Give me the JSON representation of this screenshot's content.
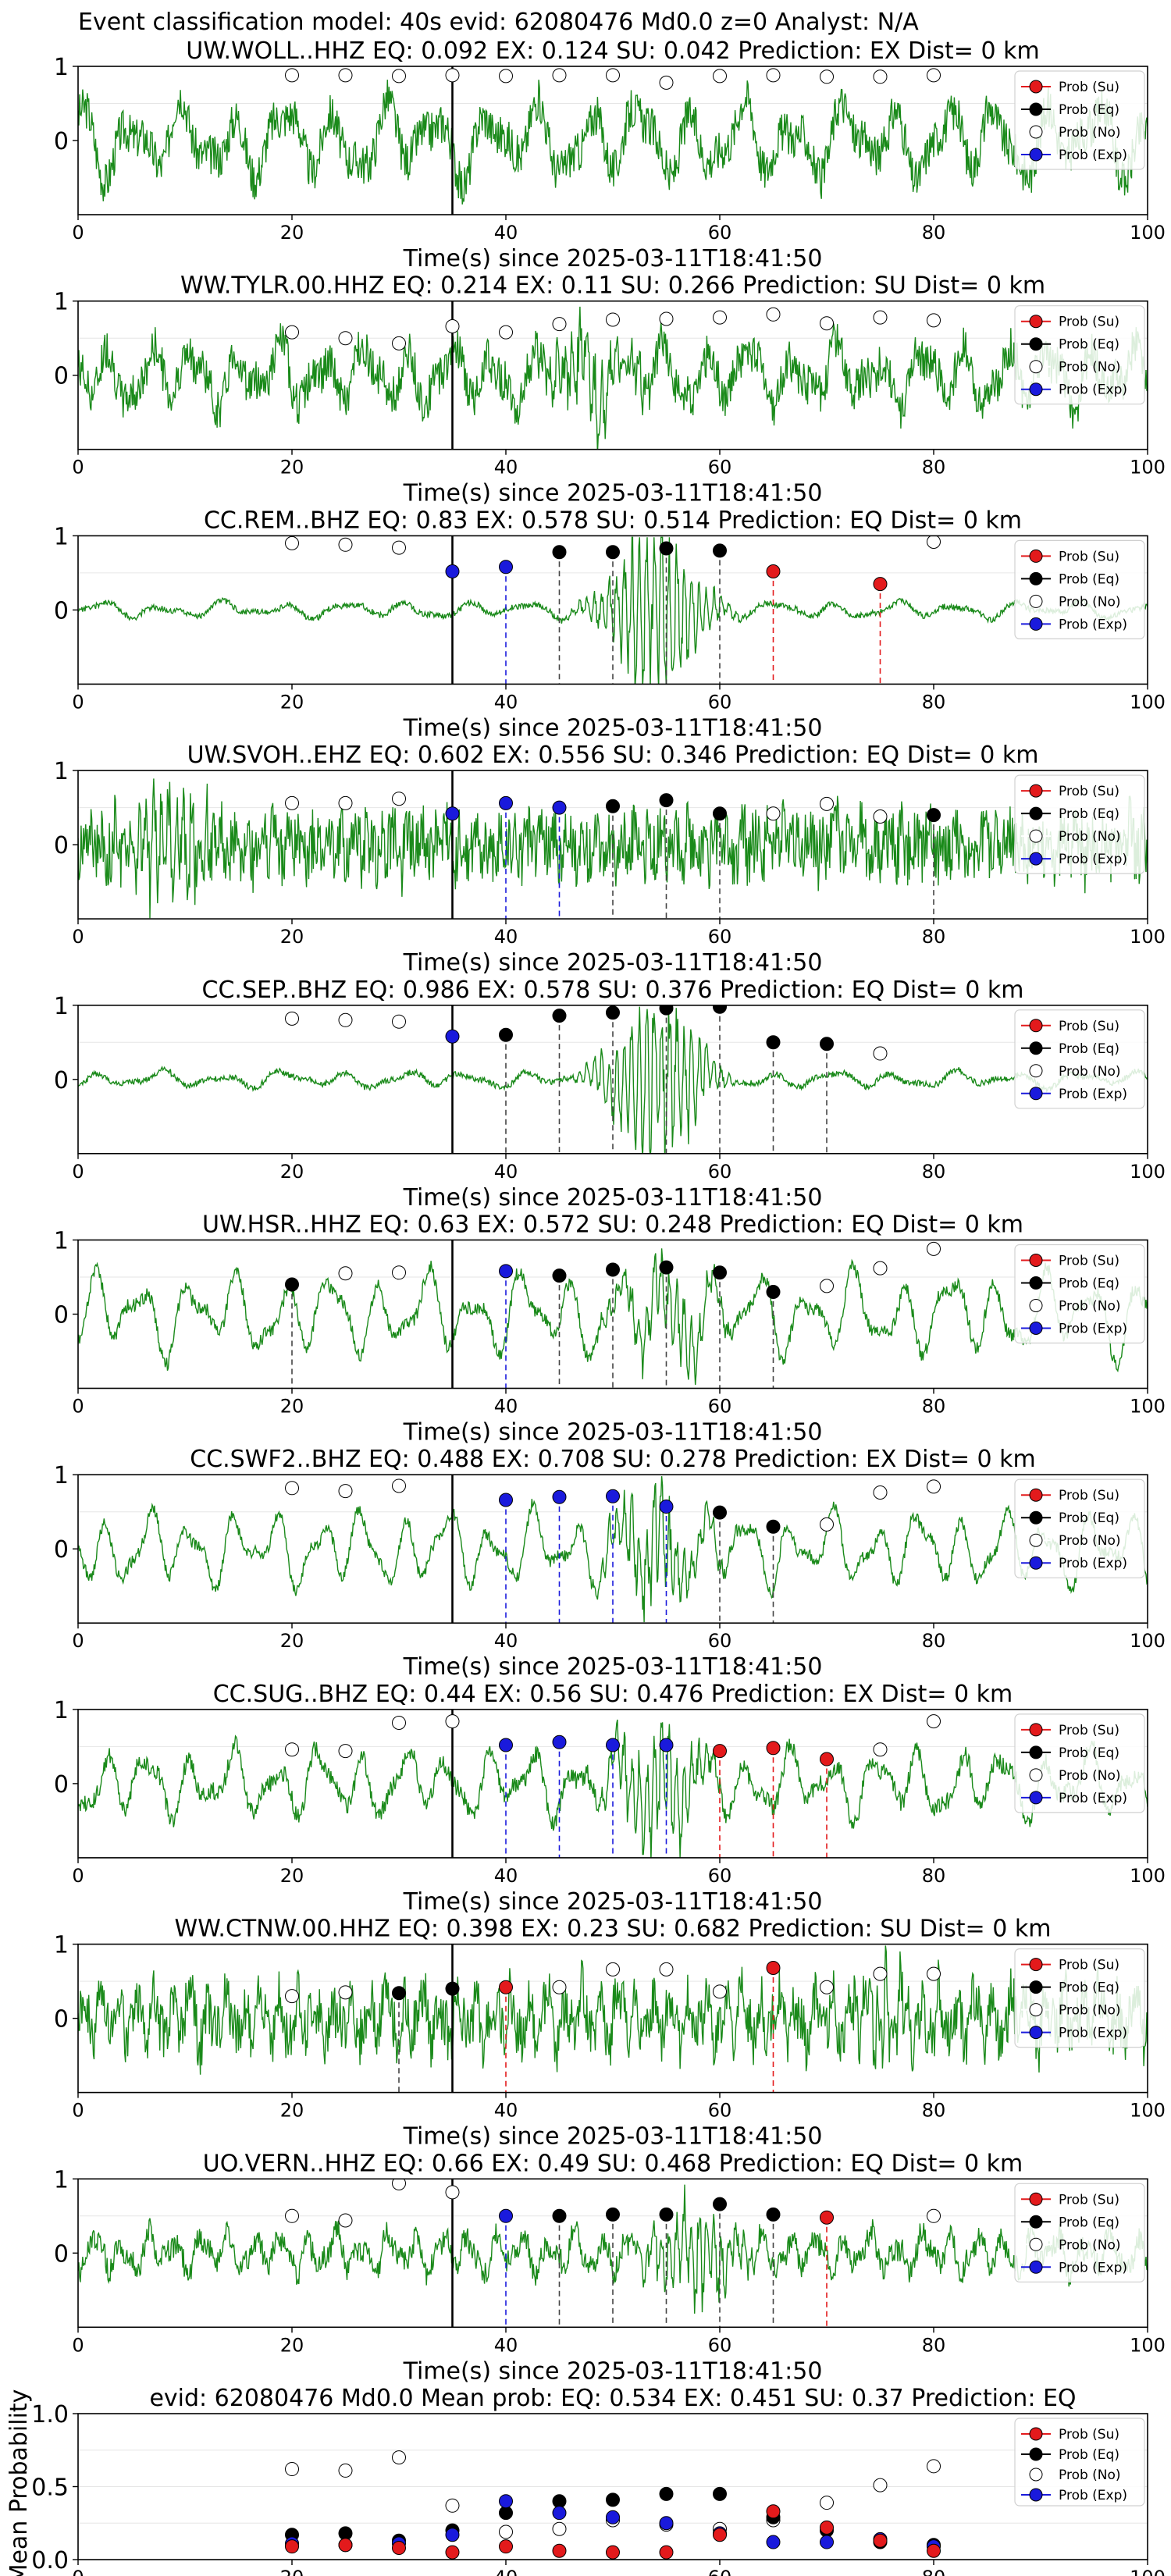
{
  "figure_title": "Event classification model: 40s evid: 62080476 Md0.0 z=0 Analyst: N/A",
  "colors": {
    "waveform": "#1a8a1a",
    "su": "#e31a1c",
    "eq": "#000000",
    "no": "#ffffff",
    "exp": "#1a1adc",
    "origin_line": "#000000",
    "grid": "#e6e6e6"
  },
  "legend": [
    "Prob (Su)",
    "Prob (Eq)",
    "Prob (No)",
    "Prob (Exp)"
  ],
  "xlabel": "Time(s) since 2025-03-11T18:41:50",
  "chart_data": [
    {
      "type": "line+scatter",
      "title": "UW.WOLL..HHZ   EQ: 0.092  EX: 0.124  SU: 0.042   Prediction: EX    Dist= 0 km",
      "xlim": [
        0,
        100
      ],
      "ylim": [
        -1,
        1
      ],
      "yticks": [
        0,
        1
      ],
      "xticks": [
        0,
        20,
        40,
        60,
        80,
        100
      ],
      "waveform": {
        "amp": 0.55,
        "noise": 0.35,
        "freq": 0.42,
        "seed": 3,
        "burst_center": 0,
        "burst_amp": 0
      },
      "origin_time": 35,
      "points": [
        {
          "x": 20,
          "cls": "no",
          "y": 0.88
        },
        {
          "x": 25,
          "cls": "no",
          "y": 0.88
        },
        {
          "x": 30,
          "cls": "no",
          "y": 0.87
        },
        {
          "x": 35,
          "cls": "no",
          "y": 0.88
        },
        {
          "x": 40,
          "cls": "no",
          "y": 0.87
        },
        {
          "x": 45,
          "cls": "no",
          "y": 0.88
        },
        {
          "x": 50,
          "cls": "no",
          "y": 0.88
        },
        {
          "x": 55,
          "cls": "no",
          "y": 0.78
        },
        {
          "x": 60,
          "cls": "no",
          "y": 0.87
        },
        {
          "x": 65,
          "cls": "no",
          "y": 0.88
        },
        {
          "x": 70,
          "cls": "no",
          "y": 0.86
        },
        {
          "x": 75,
          "cls": "no",
          "y": 0.86
        },
        {
          "x": 80,
          "cls": "no",
          "y": 0.88
        }
      ]
    },
    {
      "type": "line+scatter",
      "title": "WW.TYLR.00.HHZ   EQ: 0.214  EX: 0.11  SU: 0.266   Prediction: SU    Dist= 0 km",
      "xlim": [
        0,
        100
      ],
      "ylim": [
        -1,
        1
      ],
      "yticks": [
        0,
        1
      ],
      "xticks": [
        0,
        20,
        40,
        60,
        80,
        100
      ],
      "waveform": {
        "amp": 0.45,
        "noise": 0.35,
        "freq": 0.5,
        "seed": 7,
        "burst_center": 48,
        "burst_amp": 0.4
      },
      "origin_time": 35,
      "points": [
        {
          "x": 20,
          "cls": "no",
          "y": 0.58
        },
        {
          "x": 25,
          "cls": "no",
          "y": 0.5
        },
        {
          "x": 30,
          "cls": "no",
          "y": 0.43
        },
        {
          "x": 35,
          "cls": "no",
          "y": 0.66
        },
        {
          "x": 40,
          "cls": "no",
          "y": 0.58
        },
        {
          "x": 45,
          "cls": "no",
          "y": 0.69
        },
        {
          "x": 50,
          "cls": "no",
          "y": 0.75
        },
        {
          "x": 55,
          "cls": "no",
          "y": 0.76
        },
        {
          "x": 60,
          "cls": "no",
          "y": 0.78
        },
        {
          "x": 65,
          "cls": "no",
          "y": 0.82
        },
        {
          "x": 70,
          "cls": "no",
          "y": 0.7
        },
        {
          "x": 75,
          "cls": "no",
          "y": 0.78
        },
        {
          "x": 80,
          "cls": "no",
          "y": 0.74
        }
      ]
    },
    {
      "type": "line+scatter",
      "title": "CC.REM..BHZ   EQ: 0.83  EX: 0.578  SU: 0.514   Prediction: EQ    Dist= 0 km",
      "xlim": [
        0,
        100
      ],
      "ylim": [
        -1,
        1
      ],
      "yticks": [
        0,
        1
      ],
      "xticks": [
        0,
        20,
        40,
        60,
        80,
        100
      ],
      "waveform": {
        "amp": 0.12,
        "noise": 0.05,
        "freq": 0.35,
        "seed": 11,
        "burst_center": 54,
        "burst_amp": 0.9
      },
      "origin_time": 35,
      "points": [
        {
          "x": 20,
          "cls": "no",
          "y": 0.9
        },
        {
          "x": 25,
          "cls": "no",
          "y": 0.88
        },
        {
          "x": 30,
          "cls": "no",
          "y": 0.84
        },
        {
          "x": 35,
          "cls": "exp",
          "y": 0.52
        },
        {
          "x": 40,
          "cls": "exp",
          "y": 0.58
        },
        {
          "x": 45,
          "cls": "eq",
          "y": 0.78
        },
        {
          "x": 50,
          "cls": "eq",
          "y": 0.78
        },
        {
          "x": 55,
          "cls": "eq",
          "y": 0.83
        },
        {
          "x": 60,
          "cls": "eq",
          "y": 0.8
        },
        {
          "x": 65,
          "cls": "su",
          "y": 0.52
        },
        {
          "x": 75,
          "cls": "su",
          "y": 0.35
        },
        {
          "x": 80,
          "cls": "no",
          "y": 0.92
        }
      ]
    },
    {
      "type": "line+scatter",
      "title": "UW.SVOH..EHZ   EQ: 0.602  EX: 0.556  SU: 0.346   Prediction: EQ    Dist= 0 km",
      "xlim": [
        0,
        100
      ],
      "ylim": [
        -1,
        1
      ],
      "yticks": [
        0,
        1
      ],
      "xticks": [
        0,
        20,
        40,
        60,
        80,
        100
      ],
      "waveform": {
        "amp": 0.25,
        "noise": 0.55,
        "freq": 1.6,
        "seed": 19,
        "burst_center": 9,
        "burst_amp": 0.45
      },
      "origin_time": 35,
      "points": [
        {
          "x": 20,
          "cls": "no",
          "y": 0.56
        },
        {
          "x": 25,
          "cls": "no",
          "y": 0.56
        },
        {
          "x": 30,
          "cls": "no",
          "y": 0.62
        },
        {
          "x": 35,
          "cls": "exp",
          "y": 0.42
        },
        {
          "x": 40,
          "cls": "exp",
          "y": 0.56
        },
        {
          "x": 45,
          "cls": "exp",
          "y": 0.5
        },
        {
          "x": 50,
          "cls": "eq",
          "y": 0.52
        },
        {
          "x": 55,
          "cls": "eq",
          "y": 0.6
        },
        {
          "x": 60,
          "cls": "eq",
          "y": 0.42
        },
        {
          "x": 65,
          "cls": "no",
          "y": 0.42
        },
        {
          "x": 70,
          "cls": "no",
          "y": 0.55
        },
        {
          "x": 75,
          "cls": "no",
          "y": 0.38
        },
        {
          "x": 80,
          "cls": "eq",
          "y": 0.4
        }
      ]
    },
    {
      "type": "line+scatter",
      "title": "CC.SEP..BHZ   EQ: 0.986  EX: 0.578  SU: 0.376   Prediction: EQ    Dist= 0 km",
      "xlim": [
        0,
        100
      ],
      "ylim": [
        -1,
        1
      ],
      "yticks": [
        0,
        1
      ],
      "xticks": [
        0,
        20,
        40,
        60,
        80,
        100
      ],
      "waveform": {
        "amp": 0.12,
        "noise": 0.05,
        "freq": 0.35,
        "seed": 23,
        "burst_center": 54,
        "burst_amp": 0.95
      },
      "origin_time": 35,
      "points": [
        {
          "x": 20,
          "cls": "no",
          "y": 0.82
        },
        {
          "x": 25,
          "cls": "no",
          "y": 0.8
        },
        {
          "x": 30,
          "cls": "no",
          "y": 0.78
        },
        {
          "x": 35,
          "cls": "exp",
          "y": 0.58
        },
        {
          "x": 40,
          "cls": "eq",
          "y": 0.6
        },
        {
          "x": 45,
          "cls": "eq",
          "y": 0.86
        },
        {
          "x": 50,
          "cls": "eq",
          "y": 0.9
        },
        {
          "x": 55,
          "cls": "eq",
          "y": 0.96
        },
        {
          "x": 60,
          "cls": "eq",
          "y": 0.98
        },
        {
          "x": 65,
          "cls": "eq",
          "y": 0.5
        },
        {
          "x": 70,
          "cls": "eq",
          "y": 0.48
        },
        {
          "x": 75,
          "cls": "no",
          "y": 0.35
        }
      ]
    },
    {
      "type": "line+scatter",
      "title": "UW.HSR..HHZ   EQ: 0.63  EX: 0.572  SU: 0.248   Prediction: EQ    Dist= 0 km",
      "xlim": [
        0,
        100
      ],
      "ylim": [
        -1,
        1
      ],
      "yticks": [
        0,
        1
      ],
      "xticks": [
        0,
        20,
        40,
        60,
        80,
        100
      ],
      "waveform": {
        "amp": 0.6,
        "noise": 0.12,
        "freq": 0.45,
        "seed": 29,
        "burst_center": 55,
        "burst_amp": 0.4
      },
      "origin_time": 35,
      "points": [
        {
          "x": 20,
          "cls": "eq",
          "y": 0.4
        },
        {
          "x": 25,
          "cls": "no",
          "y": 0.55
        },
        {
          "x": 30,
          "cls": "no",
          "y": 0.56
        },
        {
          "x": 40,
          "cls": "exp",
          "y": 0.58
        },
        {
          "x": 45,
          "cls": "eq",
          "y": 0.52
        },
        {
          "x": 50,
          "cls": "eq",
          "y": 0.6
        },
        {
          "x": 55,
          "cls": "eq",
          "y": 0.63
        },
        {
          "x": 60,
          "cls": "eq",
          "y": 0.56
        },
        {
          "x": 65,
          "cls": "eq",
          "y": 0.3
        },
        {
          "x": 70,
          "cls": "no",
          "y": 0.38
        },
        {
          "x": 75,
          "cls": "no",
          "y": 0.62
        },
        {
          "x": 80,
          "cls": "no",
          "y": 0.88
        }
      ]
    },
    {
      "type": "line+scatter",
      "title": "CC.SWF2..BHZ   EQ: 0.488  EX: 0.708  SU: 0.278   Prediction: EX    Dist= 0 km",
      "xlim": [
        0,
        100
      ],
      "ylim": [
        -1,
        1
      ],
      "yticks": [
        0,
        1
      ],
      "xticks": [
        0,
        20,
        40,
        60,
        80,
        100
      ],
      "waveform": {
        "amp": 0.55,
        "noise": 0.1,
        "freq": 0.5,
        "seed": 31,
        "burst_center": 54,
        "burst_amp": 0.55
      },
      "origin_time": 35,
      "points": [
        {
          "x": 20,
          "cls": "no",
          "y": 0.82
        },
        {
          "x": 25,
          "cls": "no",
          "y": 0.78
        },
        {
          "x": 30,
          "cls": "no",
          "y": 0.85
        },
        {
          "x": 40,
          "cls": "exp",
          "y": 0.66
        },
        {
          "x": 45,
          "cls": "exp",
          "y": 0.7
        },
        {
          "x": 50,
          "cls": "exp",
          "y": 0.71
        },
        {
          "x": 55,
          "cls": "exp",
          "y": 0.57
        },
        {
          "x": 60,
          "cls": "eq",
          "y": 0.49
        },
        {
          "x": 65,
          "cls": "eq",
          "y": 0.3
        },
        {
          "x": 70,
          "cls": "no",
          "y": 0.33
        },
        {
          "x": 75,
          "cls": "no",
          "y": 0.76
        },
        {
          "x": 80,
          "cls": "no",
          "y": 0.84
        }
      ]
    },
    {
      "type": "line+scatter",
      "title": "CC.SUG..BHZ   EQ: 0.44  EX: 0.56  SU: 0.476   Prediction: EX    Dist= 0 km",
      "xlim": [
        0,
        100
      ],
      "ylim": [
        -1,
        1
      ],
      "yticks": [
        0,
        1
      ],
      "xticks": [
        0,
        20,
        40,
        60,
        80,
        100
      ],
      "waveform": {
        "amp": 0.5,
        "noise": 0.15,
        "freq": 0.5,
        "seed": 37,
        "burst_center": 54,
        "burst_amp": 0.55
      },
      "origin_time": 35,
      "points": [
        {
          "x": 20,
          "cls": "no",
          "y": 0.46
        },
        {
          "x": 25,
          "cls": "no",
          "y": 0.44
        },
        {
          "x": 30,
          "cls": "no",
          "y": 0.82
        },
        {
          "x": 35,
          "cls": "no",
          "y": 0.84
        },
        {
          "x": 40,
          "cls": "exp",
          "y": 0.52
        },
        {
          "x": 45,
          "cls": "exp",
          "y": 0.56
        },
        {
          "x": 50,
          "cls": "exp",
          "y": 0.52
        },
        {
          "x": 55,
          "cls": "exp",
          "y": 0.52
        },
        {
          "x": 60,
          "cls": "su",
          "y": 0.44
        },
        {
          "x": 65,
          "cls": "su",
          "y": 0.48
        },
        {
          "x": 70,
          "cls": "su",
          "y": 0.33
        },
        {
          "x": 75,
          "cls": "no",
          "y": 0.46
        },
        {
          "x": 80,
          "cls": "no",
          "y": 0.84
        }
      ]
    },
    {
      "type": "line+scatter",
      "title": "WW.CTNW.00.HHZ   EQ: 0.398  EX: 0.23  SU: 0.682   Prediction: SU    Dist= 0 km",
      "xlim": [
        0,
        100
      ],
      "ylim": [
        -1,
        1
      ],
      "yticks": [
        0,
        1
      ],
      "xticks": [
        0,
        20,
        40,
        60,
        80,
        100
      ],
      "waveform": {
        "amp": 0.4,
        "noise": 0.45,
        "freq": 1.2,
        "seed": 41,
        "burst_center": 75,
        "burst_amp": 0.35
      },
      "origin_time": 35,
      "points": [
        {
          "x": 20,
          "cls": "no",
          "y": 0.3
        },
        {
          "x": 25,
          "cls": "no",
          "y": 0.35
        },
        {
          "x": 30,
          "cls": "eq",
          "y": 0.34
        },
        {
          "x": 35,
          "cls": "eq",
          "y": 0.4
        },
        {
          "x": 40,
          "cls": "su",
          "y": 0.42
        },
        {
          "x": 45,
          "cls": "no",
          "y": 0.42
        },
        {
          "x": 50,
          "cls": "no",
          "y": 0.66
        },
        {
          "x": 55,
          "cls": "no",
          "y": 0.66
        },
        {
          "x": 60,
          "cls": "no",
          "y": 0.36
        },
        {
          "x": 65,
          "cls": "su",
          "y": 0.68
        },
        {
          "x": 70,
          "cls": "no",
          "y": 0.42
        },
        {
          "x": 75,
          "cls": "no",
          "y": 0.6
        },
        {
          "x": 80,
          "cls": "no",
          "y": 0.6
        }
      ]
    },
    {
      "type": "line+scatter",
      "title": "UO.VERN..HHZ   EQ: 0.66  EX: 0.49  SU: 0.468   Prediction: EQ    Dist= 0 km",
      "xlim": [
        0,
        100
      ],
      "ylim": [
        -1,
        1
      ],
      "yticks": [
        0,
        1
      ],
      "xticks": [
        0,
        20,
        40,
        60,
        80,
        100
      ],
      "waveform": {
        "amp": 0.3,
        "noise": 0.2,
        "freq": 0.8,
        "seed": 43,
        "burst_center": 58,
        "burst_amp": 0.5
      },
      "origin_time": 35,
      "points": [
        {
          "x": 20,
          "cls": "no",
          "y": 0.5
        },
        {
          "x": 25,
          "cls": "no",
          "y": 0.44
        },
        {
          "x": 30,
          "cls": "no",
          "y": 0.94
        },
        {
          "x": 35,
          "cls": "no",
          "y": 0.82
        },
        {
          "x": 40,
          "cls": "exp",
          "y": 0.5
        },
        {
          "x": 45,
          "cls": "eq",
          "y": 0.5
        },
        {
          "x": 50,
          "cls": "eq",
          "y": 0.52
        },
        {
          "x": 55,
          "cls": "eq",
          "y": 0.52
        },
        {
          "x": 60,
          "cls": "eq",
          "y": 0.66
        },
        {
          "x": 65,
          "cls": "eq",
          "y": 0.52
        },
        {
          "x": 70,
          "cls": "su",
          "y": 0.48
        },
        {
          "x": 80,
          "cls": "no",
          "y": 0.5
        }
      ]
    },
    {
      "type": "scatter",
      "title": "evid: 62080476  Md0.0   Mean prob:   EQ: 0.534  EX: 0.451  SU: 0.37   Prediction: EQ",
      "ylabel": "Mean Probability",
      "xlim": [
        0,
        100
      ],
      "ylim": [
        0,
        1
      ],
      "yticks": [
        0.0,
        0.5,
        1.0
      ],
      "ytick_labels": [
        "0.0",
        "0.5",
        "1.0"
      ],
      "xticks": [
        0,
        20,
        40,
        60,
        80,
        100
      ],
      "x": [
        20,
        25,
        30,
        35,
        40,
        45,
        50,
        55,
        60,
        65,
        70,
        75,
        80
      ],
      "series": [
        {
          "cls": "no",
          "values": [
            0.62,
            0.61,
            0.7,
            0.37,
            0.19,
            0.21,
            0.27,
            0.24,
            0.21,
            0.27,
            0.39,
            0.51,
            0.64
          ]
        },
        {
          "cls": "eq",
          "values": [
            0.17,
            0.18,
            0.13,
            0.2,
            0.32,
            0.4,
            0.41,
            0.45,
            0.45,
            0.29,
            0.2,
            0.12,
            0.1
          ]
        },
        {
          "cls": "exp",
          "values": [
            0.11,
            0.1,
            0.11,
            0.17,
            0.4,
            0.32,
            0.29,
            0.25,
            0.18,
            0.12,
            0.12,
            0.14,
            0.09
          ]
        },
        {
          "cls": "su",
          "values": [
            0.09,
            0.1,
            0.08,
            0.05,
            0.09,
            0.06,
            0.05,
            0.05,
            0.17,
            0.33,
            0.22,
            0.13,
            0.06
          ]
        }
      ]
    }
  ]
}
